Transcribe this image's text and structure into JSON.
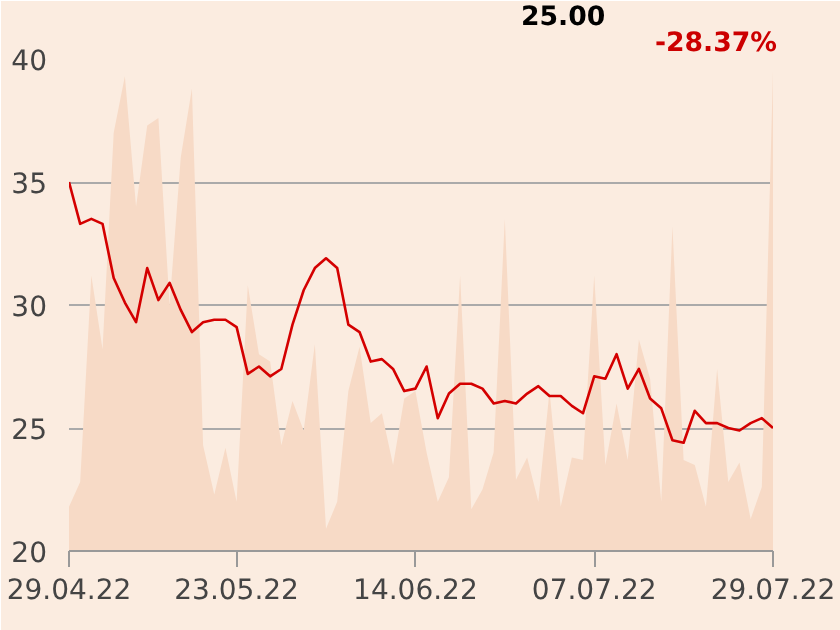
{
  "chart_data": {
    "type": "line",
    "categories": [
      "29.04.22",
      null,
      null,
      null,
      null,
      null,
      null,
      null,
      null,
      null,
      null,
      null,
      null,
      null,
      null,
      "23.05.22",
      null,
      null,
      null,
      null,
      null,
      null,
      null,
      null,
      null,
      null,
      null,
      null,
      null,
      null,
      null,
      "14.06.22",
      null,
      null,
      null,
      null,
      null,
      null,
      null,
      null,
      null,
      null,
      null,
      null,
      null,
      null,
      null,
      "07.07.22",
      null,
      null,
      null,
      null,
      null,
      null,
      null,
      null,
      null,
      null,
      null,
      null,
      null,
      null,
      null,
      "29.07.22"
    ],
    "series": [
      {
        "type": "area",
        "color": "#f7dac6",
        "values": [
          21.8,
          22.8,
          31.2,
          28.2,
          37,
          39.3,
          34,
          37.3,
          37.6,
          30,
          36,
          38.8,
          24.3,
          22.3,
          24.2,
          22,
          30.8,
          28.0,
          27.7,
          24.3,
          26.1,
          24.9,
          28.4,
          20.9,
          22,
          26.5,
          28.3,
          25.2,
          25.6,
          23.5,
          26.2,
          26.5,
          24.0,
          22.0,
          23.0,
          31.2,
          21.7,
          22.5,
          24,
          33.5,
          22.9,
          23.8,
          22,
          26.5,
          21.8,
          23.8,
          23.7,
          31.2,
          23.5,
          26.0,
          23.7,
          28.6,
          27,
          22.0,
          33.2,
          23.7,
          23.5,
          21.8,
          27.4,
          22.8,
          23.6,
          21.3,
          22.6,
          39.5
        ]
      },
      {
        "type": "line",
        "color": "#d40000",
        "values": [
          35.0,
          33.3,
          33.5,
          33.3,
          31.1,
          30.1,
          29.3,
          31.5,
          30.2,
          30.9,
          29.8,
          28.9,
          29.3,
          29.4,
          29.4,
          29.1,
          27.2,
          27.5,
          27.1,
          27.4,
          29.2,
          30.6,
          31.5,
          31.9,
          31.5,
          29.2,
          28.9,
          27.7,
          27.8,
          27.4,
          26.5,
          26.6,
          27.5,
          25.4,
          26.4,
          26.8,
          26.8,
          26.6,
          26.0,
          26.1,
          26.0,
          26.4,
          26.7,
          26.3,
          26.3,
          25.9,
          25.6,
          27.1,
          27.0,
          28.0,
          26.6,
          27.4,
          26.2,
          25.8,
          24.5,
          24.4,
          25.7,
          25.2,
          25.2,
          25.0,
          24.9,
          25.2,
          25.4,
          25.0
        ]
      }
    ],
    "ylim": [
      20,
      40
    ],
    "yticks": [
      20,
      25,
      30,
      35,
      40
    ],
    "grid": "y",
    "marker": "none",
    "line_style": "solid",
    "annotations": [
      "25.00",
      "-28.37%"
    ]
  }
}
